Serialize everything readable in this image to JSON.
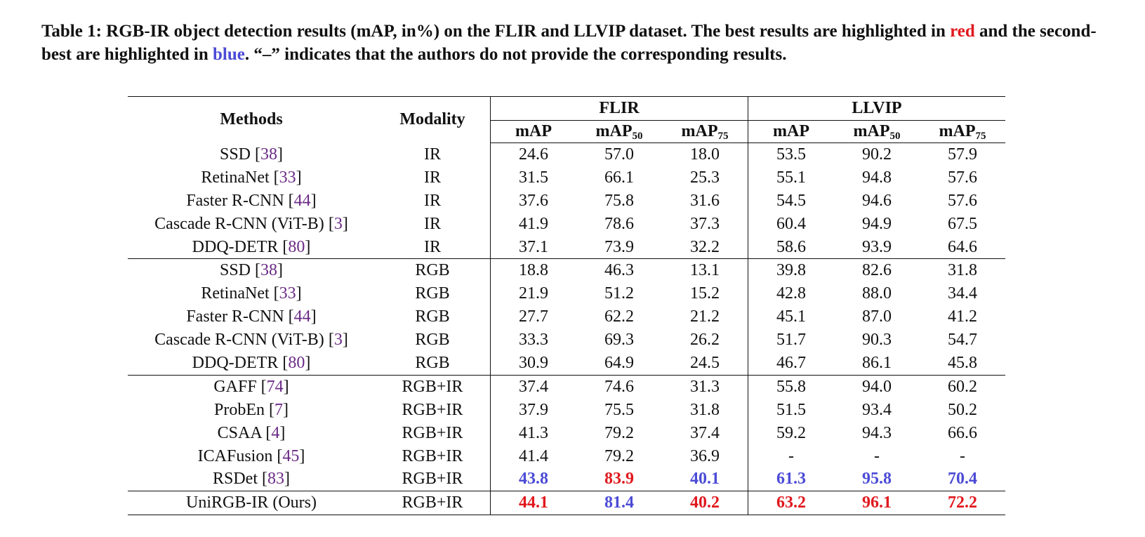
{
  "caption": {
    "part1": "Table 1: RGB-IR object detection results (mAP, in%) on the FLIR and LLVIP dataset. The best results are highlighted in ",
    "red_word": "red",
    "part2": " and the second-best are highlighted in ",
    "blue_word": "blue",
    "part3": ". “–” indicates that the authors do not provide the corresponding results."
  },
  "colors": {
    "best": "#e0191e",
    "second": "#4b4bd6",
    "citation": "#6a2a85"
  },
  "header": {
    "methods": "Methods",
    "modality": "Modality",
    "flir": "FLIR",
    "llvip": "LLVIP",
    "map": "mAP",
    "map50_base": "mAP",
    "map50_sub": "50",
    "map75_base": "mAP",
    "map75_sub": "75"
  },
  "rows": [
    {
      "name": "SSD",
      "cite": "38",
      "modality": "IR",
      "vals": [
        "24.6",
        "57.0",
        "18.0",
        "53.5",
        "90.2",
        "57.9"
      ],
      "hl": [
        "",
        "",
        "",
        "",
        "",
        ""
      ]
    },
    {
      "name": "RetinaNet",
      "cite": "33",
      "modality": "IR",
      "vals": [
        "31.5",
        "66.1",
        "25.3",
        "55.1",
        "94.8",
        "57.6"
      ],
      "hl": [
        "",
        "",
        "",
        "",
        "",
        ""
      ]
    },
    {
      "name": "Faster R-CNN",
      "cite": "44",
      "modality": "IR",
      "vals": [
        "37.6",
        "75.8",
        "31.6",
        "54.5",
        "94.6",
        "57.6"
      ],
      "hl": [
        "",
        "",
        "",
        "",
        "",
        ""
      ]
    },
    {
      "name": "Cascade R-CNN (ViT-B)",
      "cite": "3",
      "modality": "IR",
      "vals": [
        "41.9",
        "78.6",
        "37.3",
        "60.4",
        "94.9",
        "67.5"
      ],
      "hl": [
        "",
        "",
        "",
        "",
        "",
        ""
      ]
    },
    {
      "name": "DDQ-DETR",
      "cite": "80",
      "modality": "IR",
      "vals": [
        "37.1",
        "73.9",
        "32.2",
        "58.6",
        "93.9",
        "64.6"
      ],
      "hl": [
        "",
        "",
        "",
        "",
        "",
        ""
      ]
    },
    {
      "name": "SSD",
      "cite": "38",
      "modality": "RGB",
      "vals": [
        "18.8",
        "46.3",
        "13.1",
        "39.8",
        "82.6",
        "31.8"
      ],
      "hl": [
        "",
        "",
        "",
        "",
        "",
        ""
      ]
    },
    {
      "name": "RetinaNet",
      "cite": "33",
      "modality": "RGB",
      "vals": [
        "21.9",
        "51.2",
        "15.2",
        "42.8",
        "88.0",
        "34.4"
      ],
      "hl": [
        "",
        "",
        "",
        "",
        "",
        ""
      ]
    },
    {
      "name": "Faster R-CNN",
      "cite": "44",
      "modality": "RGB",
      "vals": [
        "27.7",
        "62.2",
        "21.2",
        "45.1",
        "87.0",
        "41.2"
      ],
      "hl": [
        "",
        "",
        "",
        "",
        "",
        ""
      ]
    },
    {
      "name": "Cascade R-CNN (ViT-B)",
      "cite": "3",
      "modality": "RGB",
      "vals": [
        "33.3",
        "69.3",
        "26.2",
        "51.7",
        "90.3",
        "54.7"
      ],
      "hl": [
        "",
        "",
        "",
        "",
        "",
        ""
      ]
    },
    {
      "name": "DDQ-DETR",
      "cite": "80",
      "modality": "RGB",
      "vals": [
        "30.9",
        "64.9",
        "24.5",
        "46.7",
        "86.1",
        "45.8"
      ],
      "hl": [
        "",
        "",
        "",
        "",
        "",
        ""
      ]
    },
    {
      "name": "GAFF",
      "cite": "74",
      "modality": "RGB+IR",
      "vals": [
        "37.4",
        "74.6",
        "31.3",
        "55.8",
        "94.0",
        "60.2"
      ],
      "hl": [
        "",
        "",
        "",
        "",
        "",
        ""
      ]
    },
    {
      "name": "ProbEn",
      "cite": "7",
      "modality": "RGB+IR",
      "vals": [
        "37.9",
        "75.5",
        "31.8",
        "51.5",
        "93.4",
        "50.2"
      ],
      "hl": [
        "",
        "",
        "",
        "",
        "",
        ""
      ]
    },
    {
      "name": "CSAA",
      "cite": "4",
      "modality": "RGB+IR",
      "vals": [
        "41.3",
        "79.2",
        "37.4",
        "59.2",
        "94.3",
        "66.6"
      ],
      "hl": [
        "",
        "",
        "",
        "",
        "",
        ""
      ]
    },
    {
      "name": "ICAFusion",
      "cite": "45",
      "modality": "RGB+IR",
      "vals": [
        "41.4",
        "79.2",
        "36.9",
        "-",
        "-",
        "-"
      ],
      "hl": [
        "",
        "",
        "",
        "",
        "",
        ""
      ]
    },
    {
      "name": "RSDet",
      "cite": "83",
      "modality": "RGB+IR",
      "vals": [
        "43.8",
        "83.9",
        "40.1",
        "61.3",
        "95.8",
        "70.4"
      ],
      "hl": [
        "second",
        "best",
        "second",
        "second",
        "second",
        "second"
      ]
    },
    {
      "name": "UniRGB-IR (Ours)",
      "cite": "",
      "modality": "RGB+IR",
      "vals": [
        "44.1",
        "81.4",
        "40.2",
        "63.2",
        "96.1",
        "72.2"
      ],
      "hl": [
        "best",
        "second",
        "best",
        "best",
        "best",
        "best"
      ]
    }
  ]
}
